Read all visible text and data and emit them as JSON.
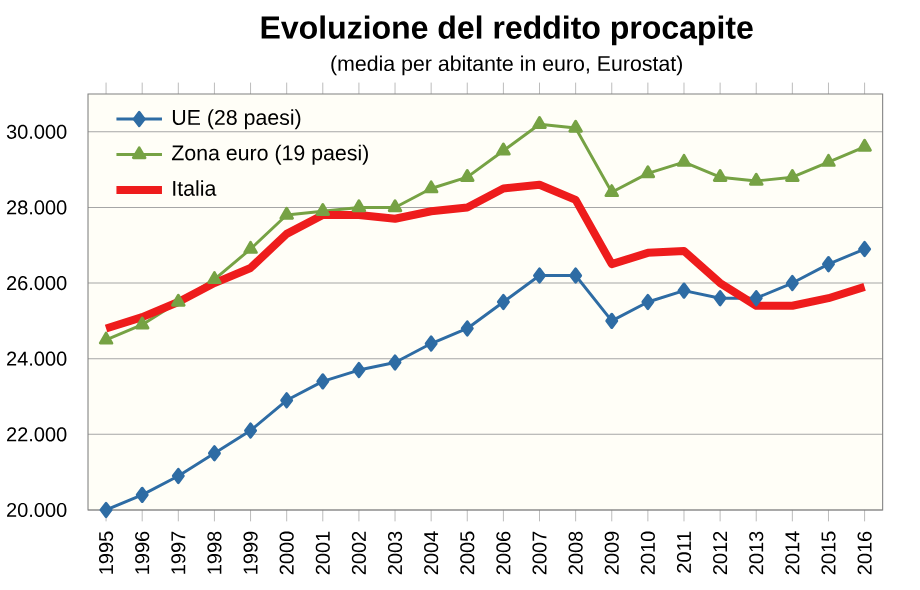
{
  "chart_data": {
    "type": "line",
    "title": "Evoluzione del reddito procapite",
    "subtitle": "(media per abitante in euro, Eurostat)",
    "categories": [
      "1995",
      "1996",
      "1997",
      "1998",
      "1999",
      "2000",
      "2001",
      "2002",
      "2003",
      "2004",
      "2005",
      "2006",
      "2007",
      "2008",
      "2009",
      "2010",
      "2011",
      "2012",
      "2013",
      "2014",
      "2015",
      "2016"
    ],
    "series": [
      {
        "name": "UE (28 paesi)",
        "color": "#2e6ca4",
        "marker": "diamond",
        "values": [
          20000,
          20400,
          20900,
          21500,
          22100,
          22900,
          23400,
          23700,
          23900,
          24400,
          24800,
          25500,
          26200,
          26200,
          25000,
          25500,
          25800,
          25600,
          25600,
          26000,
          26500,
          26900
        ]
      },
      {
        "name": "Zona euro (19 paesi)",
        "color": "#76a244",
        "marker": "triangle",
        "values": [
          24500,
          24900,
          25500,
          26100,
          26900,
          27800,
          27900,
          28000,
          28000,
          28500,
          28800,
          29500,
          30200,
          30100,
          28400,
          28900,
          29200,
          28800,
          28700,
          28800,
          29200,
          29600
        ]
      },
      {
        "name": "Italia",
        "color": "#ee1c1c",
        "marker": "none",
        "values": [
          24800,
          25100,
          25500,
          26000,
          26400,
          27300,
          27800,
          27800,
          27700,
          27900,
          28000,
          28500,
          28600,
          28200,
          26500,
          26800,
          26850,
          26000,
          25400,
          25400,
          25600,
          25900
        ]
      }
    ],
    "ylim": [
      20000,
      31000
    ],
    "yticks": [
      {
        "value": 20000,
        "label": "20.000"
      },
      {
        "value": 22000,
        "label": "22.000"
      },
      {
        "value": 24000,
        "label": "24.000"
      },
      {
        "value": 26000,
        "label": "26.000"
      },
      {
        "value": 28000,
        "label": "28.000"
      },
      {
        "value": 30000,
        "label": "30.000"
      }
    ],
    "grid": "y",
    "legend": "top left"
  }
}
